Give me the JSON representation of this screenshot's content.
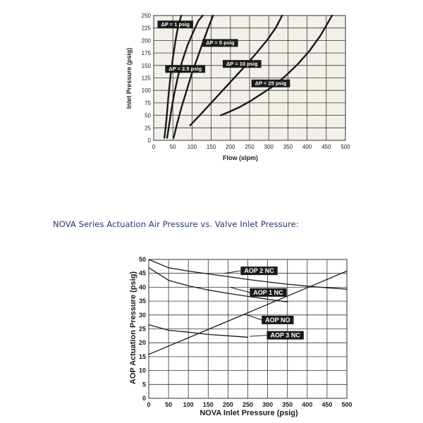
{
  "section_heading": "NOVA Series  Actuation Air Pressure vs. Valve Inlet Pressure:",
  "chart_data": [
    {
      "type": "line",
      "xlabel": "Flow (slpm)",
      "ylabel": "Inlet Pressure (psig)",
      "xlim": [
        0,
        500
      ],
      "ylim": [
        0,
        250
      ],
      "xticks": [
        0,
        50,
        100,
        150,
        200,
        250,
        300,
        350,
        400,
        450,
        500
      ],
      "yticks": [
        0,
        25,
        50,
        75,
        100,
        125,
        150,
        175,
        200,
        225,
        250
      ],
      "grid": true,
      "colors": {
        "background": "#f2f0e9",
        "grid": "#333333",
        "line": "#1a1a1a",
        "label_bg": "#1a1a1a",
        "label_text": "#ffffff"
      },
      "series": [
        {
          "name": "ΔP = 1 psig",
          "x": [
            28,
            33,
            38,
            44,
            50,
            57,
            64,
            72
          ],
          "y": [
            5,
            40,
            85,
            130,
            165,
            200,
            230,
            250
          ]
        },
        {
          "name": "ΔP = 2.5 psig",
          "x": [
            35,
            40,
            46,
            54,
            64,
            75,
            88,
            102,
            117,
            128
          ],
          "y": [
            5,
            30,
            60,
            95,
            130,
            160,
            190,
            215,
            240,
            250
          ]
        },
        {
          "name": "ΔP = 5 psig",
          "x": [
            52,
            60,
            72,
            86,
            100,
            114,
            128,
            142,
            155
          ],
          "y": [
            5,
            30,
            65,
            100,
            135,
            165,
            195,
            225,
            250
          ]
        },
        {
          "name": "ΔP = 10 psig",
          "x": [
            95,
            120,
            150,
            180,
            210,
            240,
            268,
            295,
            318,
            335
          ],
          "y": [
            30,
            50,
            75,
            100,
            125,
            150,
            175,
            200,
            225,
            250
          ]
        },
        {
          "name": "ΔP = 25 psig",
          "x": [
            175,
            200,
            225,
            255,
            285,
            315,
            345,
            375,
            405,
            435,
            465
          ],
          "y": [
            50,
            58,
            67,
            80,
            95,
            110,
            130,
            152,
            178,
            210,
            250
          ]
        }
      ],
      "labels": [
        {
          "series": "ΔP = 1 psig",
          "x": 10,
          "y": 232
        },
        {
          "series": "ΔP = 5 psig",
          "x": 127,
          "y": 195
        },
        {
          "series": "ΔP = 2.5 psig",
          "x": 30,
          "y": 143
        },
        {
          "series": "ΔP = 10 psig",
          "x": 180,
          "y": 153
        },
        {
          "series": "ΔP = 25 psig",
          "x": 255,
          "y": 114
        }
      ]
    },
    {
      "type": "line",
      "xlabel": "NOVA Inlet Pressure (psig)",
      "ylabel": "AOP Actuation Pressure (psig)",
      "xlim": [
        0,
        500
      ],
      "ylim": [
        0,
        50
      ],
      "xticks": [
        0,
        50,
        100,
        150,
        200,
        250,
        300,
        350,
        400,
        450,
        500
      ],
      "yticks": [
        0,
        5,
        10,
        15,
        20,
        25,
        30,
        35,
        40,
        45,
        50
      ],
      "grid": true,
      "colors": {
        "background": "#ffffff",
        "grid": "#333333",
        "line": "#1a1a1a",
        "label_bg": "#1a1a1a",
        "label_text": "#ffffff"
      },
      "series": [
        {
          "name": "AOP 2 NC",
          "x": [
            0,
            50,
            100,
            150,
            200,
            250,
            300,
            350,
            400,
            450,
            500
          ],
          "y": [
            50,
            47,
            45.8,
            44.8,
            43.8,
            42.8,
            41.9,
            41.1,
            40.4,
            39.8,
            39.3
          ]
        },
        {
          "name": "AOP 1 NC",
          "x": [
            0,
            50,
            100,
            150,
            200,
            250,
            300,
            350
          ],
          "y": [
            47,
            42.5,
            40.5,
            39,
            37.8,
            36.7,
            35.7,
            34.7
          ]
        },
        {
          "name": "AOP NO",
          "x": [
            0,
            100,
            200,
            300,
            400,
            500
          ],
          "y": [
            15.8,
            21.8,
            27.8,
            33.8,
            39.8,
            45.8
          ]
        },
        {
          "name": "AOP 3 NC",
          "x": [
            0,
            50,
            100,
            150,
            200,
            250
          ],
          "y": [
            26.5,
            24.5,
            23.8,
            23,
            22.5,
            22
          ]
        }
      ],
      "labels": [
        {
          "series": "AOP 2 NC",
          "x": 232,
          "y": 45.9,
          "ax": 190,
          "ay": 45
        },
        {
          "series": "AOP 1 NC",
          "x": 255,
          "y": 38.1,
          "ax": 205,
          "ay": 40
        },
        {
          "series": "AOP NO",
          "x": 285,
          "y": 28.2,
          "ax": 244,
          "ay": 30.2
        },
        {
          "series": "AOP 3 NC",
          "x": 298,
          "y": 22.7,
          "ax": 255,
          "ay": 22.3
        }
      ]
    }
  ]
}
